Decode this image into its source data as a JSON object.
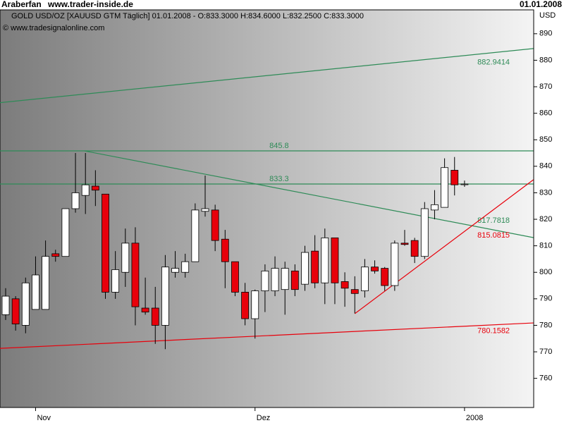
{
  "header": {
    "user": "Araberfan",
    "site": "www.trader-inside.de",
    "date": "01.01.2008"
  },
  "chart_data": {
    "type": "candlestick",
    "title": "GOLD USD/OZ [XAUUSD GTM  Täglich] 01.01.2008 - O:833.3000 H:834.6000 L:832.2500 C:833.3000",
    "subtitle": "© www.tradesignalonline.com",
    "y_unit": "USD",
    "categories": [
      null,
      null,
      null,
      "Nov",
      null,
      null,
      null,
      null,
      null,
      null,
      null,
      null,
      null,
      null,
      null,
      null,
      null,
      null,
      null,
      null,
      null,
      null,
      null,
      null,
      null,
      "Dez",
      null,
      null,
      null,
      null,
      null,
      null,
      null,
      null,
      null,
      null,
      null,
      null,
      null,
      null,
      null,
      null,
      null,
      null,
      null,
      null,
      "2008"
    ],
    "open": [
      784,
      790,
      780,
      786,
      786,
      807,
      806,
      824,
      829,
      832.5,
      829.5,
      792.5,
      800,
      811,
      786.5,
      786.5,
      780,
      800,
      800,
      804,
      823,
      823.5,
      812.5,
      804,
      792.5,
      782.5,
      793,
      793,
      793.5,
      800.5,
      795.5,
      808,
      796,
      813,
      796.5,
      793.5,
      793,
      802,
      801.5,
      795,
      811,
      812,
      806,
      823.5,
      824.5,
      838.5,
      833.3
    ],
    "high": [
      794,
      791,
      798,
      806,
      812,
      808.5,
      824,
      845,
      845,
      838.5,
      829.5,
      808,
      816.5,
      817,
      798,
      794.5,
      806.5,
      808,
      807,
      826,
      836.5,
      825.5,
      816,
      804,
      796,
      793.5,
      803,
      806,
      804,
      803,
      810,
      814,
      816.5,
      813,
      800,
      798.5,
      805,
      804.5,
      802,
      812,
      816,
      813,
      826.5,
      831,
      843,
      843.5,
      834.6
    ],
    "low": [
      782,
      778,
      777,
      786,
      786,
      804,
      806,
      822.5,
      822,
      825,
      790,
      790,
      794.5,
      780,
      784,
      773,
      771,
      798,
      798,
      804,
      821,
      808,
      794,
      791,
      780,
      775,
      785,
      791,
      784,
      791,
      793,
      794,
      788,
      788,
      787,
      784.5,
      790.5,
      799.5,
      793,
      793,
      810,
      803.5,
      805,
      820,
      824.5,
      829,
      832.25
    ],
    "close": [
      791,
      780.5,
      796,
      799,
      806,
      806,
      824,
      830,
      833,
      831,
      792.5,
      801,
      811,
      787,
      785,
      780,
      802,
      801.5,
      804,
      823.5,
      824,
      812,
      804,
      792.5,
      782.5,
      793,
      800.5,
      801.5,
      801.5,
      793.5,
      807.5,
      796,
      813,
      796,
      794,
      792,
      802,
      800.5,
      795,
      811,
      810.5,
      806,
      824,
      825.5,
      839.5,
      833,
      833.3
    ],
    "up_color": "#ffffff",
    "down_color": "#e8000b",
    "trendlines": [
      {
        "label": 882.9414,
        "color": "#2e8b57",
        "x": [
          -0.57,
          52.9
        ],
        "values": [
          864,
          884.4
        ]
      },
      {
        "label": 845.8,
        "color": "#2e8b57",
        "x": [
          -0.57,
          52.9
        ],
        "values": [
          845.8,
          845.8
        ]
      },
      {
        "label": 833.3,
        "color": "#2e8b57",
        "x": [
          -0.57,
          52.9
        ],
        "values": [
          833.3,
          833.3
        ]
      },
      {
        "label": 817.7818,
        "color": "#2e8b57",
        "x": [
          7.9,
          52.9
        ],
        "values": [
          845.8,
          813.1
        ]
      },
      {
        "label": 815.0815,
        "color": "#e8000b",
        "x": [
          35,
          52.9
        ],
        "values": [
          784.4,
          834.9
        ]
      },
      {
        "label": 780.1582,
        "color": "#e8000b",
        "x": [
          -0.57,
          52.9
        ],
        "values": [
          771.3,
          780.9
        ]
      }
    ],
    "ylim": [
      749,
      899
    ],
    "yticks": [
      760,
      770,
      780,
      790,
      800,
      810,
      820,
      830,
      840,
      850,
      860,
      870,
      880,
      890
    ]
  }
}
